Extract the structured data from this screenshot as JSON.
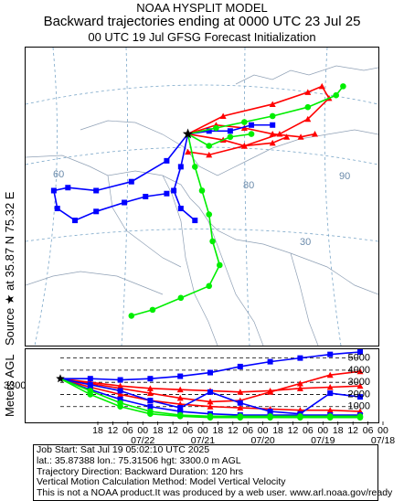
{
  "header": {
    "line1": "NOAA HYSPLIT MODEL",
    "line2": "Backward trajectories ending at 0000 UTC 23 Jul 25",
    "line3": "00 UTC 19 Jul    GFSG  Forecast Initialization"
  },
  "side_label": {
    "source": "Source ★ at    35.87 N    75.32 E",
    "meters": "Meters AGL"
  },
  "map": {
    "lon_labels": [
      "60",
      "90"
    ],
    "lat_labels": [
      "30"
    ],
    "grid_labels_other": [
      "80"
    ]
  },
  "colors": {
    "red": "#ff0000",
    "blue": "#0000ff",
    "green": "#00ee00"
  },
  "chart_data": {
    "type": "line",
    "title": "Backward trajectories ending at 0000 UTC 23 Jul 25",
    "ylabel": "Meters AGL",
    "start_height_label": "3300",
    "y_ticks": [
      "5000",
      "4000",
      "3000",
      "2000",
      "1000"
    ],
    "ylim": [
      0,
      5500
    ],
    "x_hour_ticks": [
      "18",
      "12",
      "06",
      "00",
      "18",
      "12",
      "06",
      "00",
      "18",
      "12",
      "06",
      "00",
      "18",
      "12",
      "06",
      "00",
      "18",
      "12",
      "06",
      "00"
    ],
    "x_date_labels": [
      "07/22",
      "07/21",
      "07/20",
      "07/19",
      "07/18"
    ],
    "hours_back": 120,
    "series": [
      {
        "color": "red",
        "x": [
          0,
          12,
          24,
          36,
          48,
          60,
          72,
          84,
          96,
          108,
          120
        ],
        "y": [
          3300,
          2900,
          2500,
          2100,
          1700,
          1400,
          1500,
          2200,
          2900,
          3600,
          3900
        ]
      },
      {
        "color": "red",
        "x": [
          0,
          12,
          24,
          36,
          48,
          60,
          72,
          84,
          96,
          108,
          120
        ],
        "y": [
          3300,
          3000,
          2700,
          2500,
          2400,
          2300,
          2200,
          2300,
          2500,
          2600,
          2700
        ]
      },
      {
        "color": "red",
        "x": [
          0,
          12,
          24,
          36,
          48,
          60,
          72,
          84,
          96,
          108,
          120
        ],
        "y": [
          3300,
          2600,
          2000,
          1500,
          1200,
          1000,
          900,
          800,
          700,
          700,
          600
        ]
      },
      {
        "color": "blue",
        "x": [
          0,
          12,
          24,
          36,
          48,
          60,
          72,
          84,
          96,
          108,
          120
        ],
        "y": [
          3300,
          3300,
          3200,
          3300,
          3500,
          3800,
          4300,
          4700,
          5000,
          5300,
          5500
        ]
      },
      {
        "color": "blue",
        "x": [
          0,
          12,
          24,
          36,
          48,
          60,
          72,
          84,
          96,
          108,
          120
        ],
        "y": [
          3300,
          2800,
          2300,
          1500,
          900,
          2200,
          1300,
          600,
          400,
          2100,
          1800
        ]
      },
      {
        "color": "blue",
        "x": [
          0,
          12,
          24,
          36,
          48,
          60,
          72,
          84,
          96,
          108,
          120
        ],
        "y": [
          3300,
          2400,
          1600,
          1000,
          600,
          400,
          300,
          300,
          300,
          300,
          300
        ]
      },
      {
        "color": "green",
        "x": [
          0,
          12,
          24,
          36,
          48,
          60,
          72,
          84,
          96,
          108,
          120
        ],
        "y": [
          3300,
          2300,
          1300,
          600,
          300,
          200,
          200,
          200,
          200,
          200,
          200
        ]
      },
      {
        "color": "green",
        "x": [
          0,
          12,
          24,
          36,
          48,
          60,
          72,
          84,
          96,
          108,
          120
        ],
        "y": [
          3300,
          2000,
          1000,
          400,
          200,
          100,
          100,
          100,
          100,
          100,
          100
        ]
      }
    ]
  },
  "map_tracks": [
    {
      "color": "red",
      "points": [
        [
          46,
          29
        ],
        [
          56,
          23
        ],
        [
          70,
          19
        ],
        [
          80,
          15
        ],
        [
          84,
          13
        ],
        [
          86,
          17
        ],
        [
          80,
          24
        ],
        [
          72,
          29
        ],
        [
          62,
          33
        ],
        [
          52,
          36
        ],
        [
          46,
          35
        ]
      ]
    },
    {
      "color": "red",
      "points": [
        [
          46,
          29
        ],
        [
          54,
          26
        ],
        [
          62,
          27
        ],
        [
          70,
          29
        ],
        [
          78,
          30
        ],
        [
          82,
          29
        ]
      ]
    },
    {
      "color": "red",
      "points": [
        [
          46,
          29
        ],
        [
          56,
          31
        ],
        [
          62,
          33
        ],
        [
          70,
          32
        ],
        [
          74,
          30
        ]
      ]
    },
    {
      "color": "blue",
      "points": [
        [
          46,
          29
        ],
        [
          40,
          38
        ],
        [
          30,
          45
        ],
        [
          20,
          48
        ],
        [
          12,
          47
        ],
        [
          8,
          48
        ],
        [
          9,
          54
        ],
        [
          14,
          58
        ],
        [
          20,
          55
        ],
        [
          28,
          52
        ],
        [
          34,
          50
        ],
        [
          40,
          49
        ]
      ]
    },
    {
      "color": "blue",
      "points": [
        [
          46,
          29
        ],
        [
          52,
          28
        ],
        [
          58,
          28
        ],
        [
          64,
          26
        ],
        [
          70,
          26
        ]
      ]
    },
    {
      "color": "blue",
      "points": [
        [
          46,
          29
        ],
        [
          44,
          40
        ],
        [
          42,
          48
        ],
        [
          44,
          54
        ],
        [
          48,
          58
        ]
      ]
    },
    {
      "color": "green",
      "points": [
        [
          46,
          29
        ],
        [
          48,
          40
        ],
        [
          50,
          48
        ],
        [
          52,
          56
        ],
        [
          53,
          65
        ],
        [
          55,
          73
        ],
        [
          52,
          80
        ],
        [
          44,
          84
        ],
        [
          36,
          88
        ],
        [
          30,
          90
        ]
      ]
    },
    {
      "color": "green",
      "points": [
        [
          46,
          29
        ],
        [
          54,
          27
        ],
        [
          62,
          25
        ],
        [
          70,
          23
        ],
        [
          80,
          20
        ],
        [
          88,
          16
        ],
        [
          90,
          13
        ]
      ]
    },
    {
      "color": "green",
      "points": [
        [
          46,
          29
        ],
        [
          52,
          33
        ],
        [
          58,
          30
        ],
        [
          64,
          29
        ]
      ]
    }
  ],
  "info": {
    "line1": "Job Start: Sat Jul 19 05:02:10 UTC 2025",
    "line2": "lat.: 35.87388   lon.: 75.31506   hgt: 3300.0 m AGL",
    "line3": "Trajectory Direction: Backward       Duration: 120 hrs",
    "line4": "Vertical Motion Calculation Method: Model Vertical Velocity",
    "line5": "This is not a NOAA product.It was produced by a web user. www.arl.noaa.gov/ready"
  }
}
